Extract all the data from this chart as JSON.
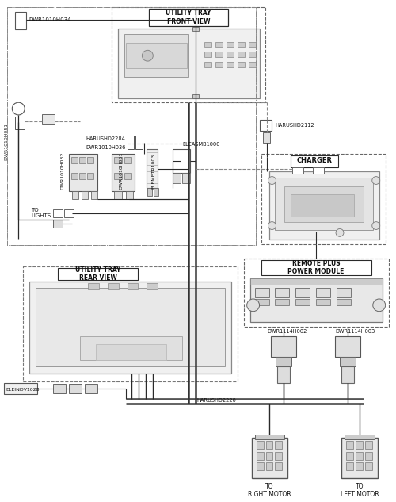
{
  "bg_color": "#ffffff",
  "lc": "#2a2a2a",
  "dc": "#666666",
  "gc": "#aaaaaa",
  "labels": {
    "utility_tray_front": "UTILITY TRAY\nFRONT VIEW",
    "utility_tray_rear": "UTILITY TRAY\nREAR VIEW",
    "charger": "CHARGER",
    "remote_plus": "REMOTE PLUS\nPOWER MODULE",
    "harushd2284": "HARUSHD2284",
    "dwr1010h036": "DWR1010H036",
    "dwr1010h034": "DWR1010H034",
    "dwr1010h051": "DWR1010H051",
    "dwr1010h032": "DWR1010H032",
    "dwr1010h031": "DWR1010H031",
    "elemetr1003": "ELEMETR1003",
    "eleasmb1000": "ELEASMB1000",
    "harushd2112": "HARUSHD2112",
    "harushd2220": "HARUSHD2220",
    "dwr1114h002": "DWR1114H002",
    "dwr1114h003": "DWR1114H003",
    "eleindv1028": "ELEINDV1028",
    "to_lights": "TO\nLIGHTS",
    "to_right_motor": "TO\nRIGHT MOTOR",
    "to_left_motor": "TO\nLEFT MOTOR"
  },
  "figsize": [
    5.0,
    6.33
  ],
  "dpi": 100
}
